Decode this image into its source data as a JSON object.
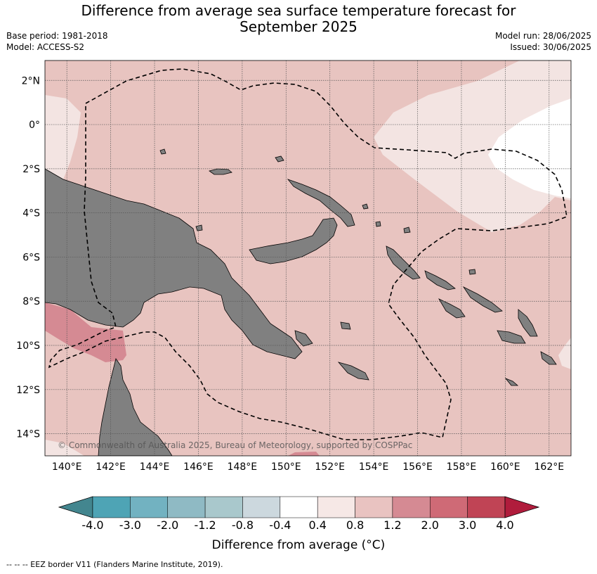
{
  "title": {
    "line1": "Difference from average sea surface temperature forecast for",
    "line2": "September 2025"
  },
  "meta": {
    "base_period": "Base period: 1981-2018",
    "model": "Model: ACCESS-S2",
    "model_run": "Model run: 28/06/2025",
    "issued": "Issued: 30/06/2025"
  },
  "map": {
    "lon_labels": [
      "140°E",
      "142°E",
      "144°E",
      "146°E",
      "148°E",
      "150°E",
      "152°E",
      "154°E",
      "156°E",
      "158°E",
      "160°E",
      "162°E"
    ],
    "lat_labels": [
      "2°N",
      "0°",
      "2°S",
      "4°S",
      "6°S",
      "8°S",
      "10°S",
      "12°S",
      "14°S"
    ],
    "copyright": "© Commonwealth of Australia 2025, Bureau of Meteorology, supported by COSPPac",
    "colors": {
      "ocean_base": "#e8c4c0",
      "band_0_4_0_8": "#f3e4e2",
      "band_neg04_04": "#ffffff",
      "band_1_2_2_0": "#d58a93",
      "land": "#808080"
    }
  },
  "colorbar": {
    "ticks": [
      "-4.0",
      "-3.0",
      "-2.0",
      "-1.2",
      "-0.8",
      "-0.4",
      "0.4",
      "0.8",
      "1.2",
      "2.0",
      "3.0",
      "4.0"
    ],
    "colors": [
      "#43868f",
      "#4ea4b5",
      "#72b2c1",
      "#8fbac4",
      "#a9c8cc",
      "#ccd8de",
      "#ffffff",
      "#f6e8e6",
      "#e9c3c1",
      "#d58a93",
      "#cf6a76",
      "#c04455",
      "#b01c3c"
    ],
    "label": "Difference from average (°C)"
  },
  "footnote": "--  --  -- EEZ border V11 (Flanders Marine Institute, 2019)."
}
